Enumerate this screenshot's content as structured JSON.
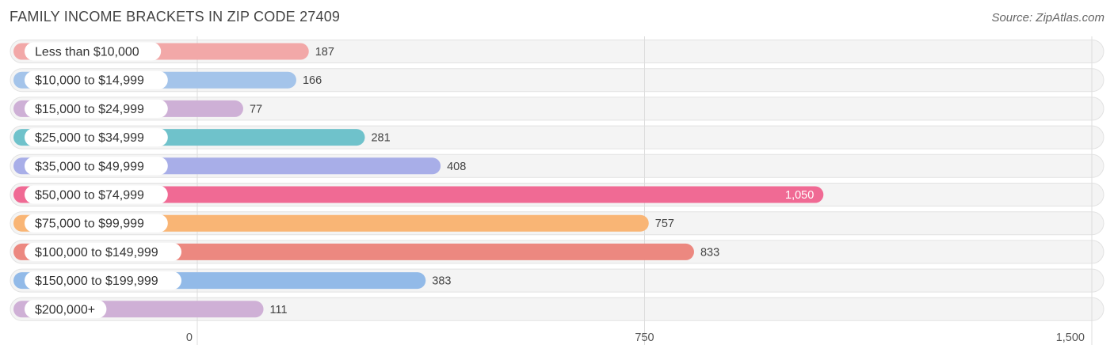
{
  "title": "FAMILY INCOME BRACKETS IN ZIP CODE 27409",
  "source": "Source: ZipAtlas.com",
  "chart_data": {
    "type": "bar",
    "orientation": "horizontal",
    "title": "FAMILY INCOME BRACKETS IN ZIP CODE 27409",
    "categories": [
      "Less than $10,000",
      "$10,000 to $14,999",
      "$15,000 to $24,999",
      "$25,000 to $34,999",
      "$35,000 to $49,999",
      "$50,000 to $74,999",
      "$75,000 to $99,999",
      "$100,000 to $149,999",
      "$150,000 to $199,999",
      "$200,000+"
    ],
    "values": [
      187,
      166,
      77,
      281,
      408,
      1050,
      757,
      833,
      383,
      111
    ],
    "value_labels": [
      "187",
      "166",
      "77",
      "281",
      "408",
      "1,050",
      "757",
      "833",
      "383",
      "111"
    ],
    "colors": [
      "#f2a8a8",
      "#a4c4ea",
      "#ceb0d6",
      "#6fc2cb",
      "#a8aee8",
      "#f06a94",
      "#f9b575",
      "#ec8880",
      "#92bae8",
      "#cfb0d6"
    ],
    "xlim": [
      0,
      1500
    ],
    "xticks": [
      0,
      750,
      1500
    ],
    "xtick_labels": [
      "0",
      "750",
      "1,500"
    ],
    "grid": true
  }
}
